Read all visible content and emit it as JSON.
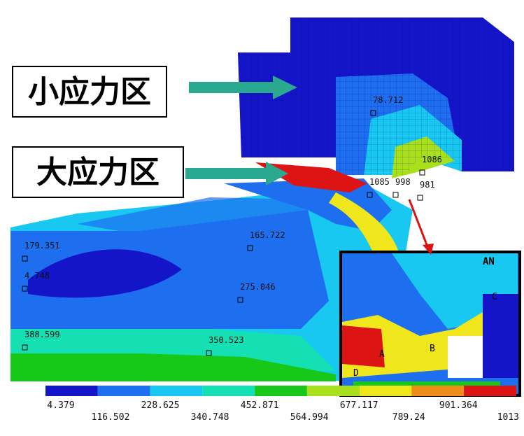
{
  "callouts": [
    {
      "label": "小应力区"
    },
    {
      "label": "大应力区"
    }
  ],
  "probes": [
    "179.351",
    "4.748",
    "388.599",
    "165.722",
    "275.046",
    "350.523",
    "78.712",
    "1086",
    "1085",
    "998",
    "981"
  ],
  "inset": {
    "logo": "AN",
    "points": [
      "A",
      "B",
      "C",
      "D"
    ]
  },
  "legend": {
    "colors": [
      "#1414c8",
      "#1e6ef0",
      "#18c8f0",
      "#14e0b4",
      "#18c818",
      "#a8e01c",
      "#f0e61c",
      "#f08c18",
      "#dc1414"
    ],
    "ticks": [
      4.379,
      116.502,
      228.625,
      340.748,
      452.871,
      564.994,
      677.117,
      789.24,
      901.364,
      1013
    ]
  }
}
